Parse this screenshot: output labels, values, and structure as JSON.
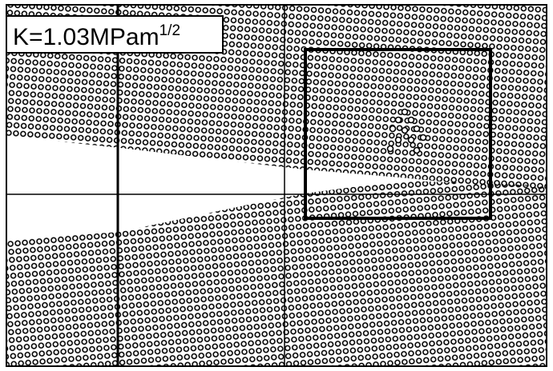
{
  "label": {
    "main": "K=1.03MPam",
    "exponent": "1/2"
  }
}
